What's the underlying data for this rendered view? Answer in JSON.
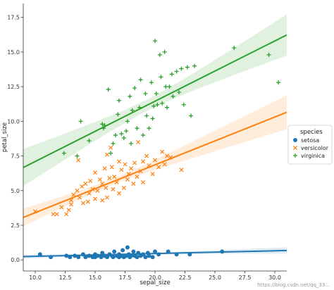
{
  "chart_data": {
    "type": "scatter",
    "xlabel": "sepal_size",
    "ylabel": "petal_size",
    "xlim": [
      9.0,
      31.0
    ],
    "ylim": [
      -0.8,
      18.5
    ],
    "xticks": [
      "10.0",
      "12.5",
      "15.0",
      "17.5",
      "20.0",
      "22.5",
      "25.0",
      "27.5",
      "30.0"
    ],
    "yticks": [
      "0.0",
      "2.5",
      "5.0",
      "7.5",
      "10.0",
      "12.5",
      "15.0",
      "17.5"
    ],
    "grid": false,
    "legend": {
      "title": "species",
      "placement": "right"
    },
    "series": [
      {
        "name": "setosa",
        "color": "#1f77b4",
        "marker": "circle",
        "fit": {
          "slope": 0.02,
          "intercept": 0.06
        },
        "points": [
          [
            10.4,
            0.4
          ],
          [
            11.3,
            0.2
          ],
          [
            12.6,
            0.3
          ],
          [
            12.9,
            0.2
          ],
          [
            13.3,
            0.3
          ],
          [
            13.6,
            0.2
          ],
          [
            14.0,
            0.4
          ],
          [
            14.2,
            0.2
          ],
          [
            14.5,
            0.3
          ],
          [
            14.8,
            0.2
          ],
          [
            15.0,
            0.2
          ],
          [
            15.0,
            0.4
          ],
          [
            15.2,
            0.3
          ],
          [
            15.5,
            0.2
          ],
          [
            15.6,
            0.5
          ],
          [
            15.8,
            0.3
          ],
          [
            16.0,
            0.2
          ],
          [
            16.2,
            0.4
          ],
          [
            16.4,
            0.3
          ],
          [
            16.5,
            0.2
          ],
          [
            16.6,
            0.6
          ],
          [
            16.8,
            0.3
          ],
          [
            17.0,
            0.2
          ],
          [
            17.0,
            0.4
          ],
          [
            17.2,
            0.3
          ],
          [
            17.3,
            0.7
          ],
          [
            17.4,
            0.2
          ],
          [
            17.6,
            0.3
          ],
          [
            17.7,
            0.9
          ],
          [
            17.8,
            0.4
          ],
          [
            17.9,
            0.2
          ],
          [
            18.0,
            0.3
          ],
          [
            18.2,
            0.6
          ],
          [
            18.3,
            0.3
          ],
          [
            18.5,
            0.2
          ],
          [
            18.6,
            0.5
          ],
          [
            18.8,
            0.3
          ],
          [
            19.0,
            0.4
          ],
          [
            19.2,
            0.2
          ],
          [
            19.4,
            0.5
          ],
          [
            19.5,
            0.3
          ],
          [
            19.8,
            0.2
          ],
          [
            20.0,
            0.6
          ],
          [
            20.3,
            0.4
          ],
          [
            21.1,
            0.6
          ],
          [
            21.8,
            0.4
          ],
          [
            22.9,
            0.4
          ],
          [
            25.6,
            0.6
          ]
        ]
      },
      {
        "name": "versicolor",
        "color": "#ff7f0e",
        "marker": "x",
        "fit": {
          "slope": 0.345,
          "intercept": -0.04
        },
        "points": [
          [
            10.0,
            3.5
          ],
          [
            11.5,
            3.3
          ],
          [
            11.8,
            3.3
          ],
          [
            12.2,
            3.8
          ],
          [
            12.6,
            3.3
          ],
          [
            12.8,
            3.6
          ],
          [
            13.0,
            4.0
          ],
          [
            13.0,
            4.3
          ],
          [
            13.2,
            4.7
          ],
          [
            13.5,
            5.0
          ],
          [
            13.6,
            7.2
          ],
          [
            13.7,
            4.5
          ],
          [
            13.9,
            5.3
          ],
          [
            14.0,
            4.1
          ],
          [
            14.2,
            5.5
          ],
          [
            14.4,
            4.2
          ],
          [
            14.5,
            4.8
          ],
          [
            14.6,
            5.7
          ],
          [
            14.8,
            5.1
          ],
          [
            15.0,
            4.4
          ],
          [
            15.0,
            6.3
          ],
          [
            15.2,
            5.0
          ],
          [
            15.4,
            5.8
          ],
          [
            15.6,
            4.3
          ],
          [
            15.6,
            5.5
          ],
          [
            15.8,
            6.6
          ],
          [
            15.9,
            5.2
          ],
          [
            16.0,
            4.5
          ],
          [
            16.0,
            7.6
          ],
          [
            16.2,
            5.9
          ],
          [
            16.3,
            8.1
          ],
          [
            16.4,
            6.7
          ],
          [
            16.5,
            5.1
          ],
          [
            16.6,
            6.0
          ],
          [
            16.8,
            5.6
          ],
          [
            17.0,
            7.1
          ],
          [
            17.0,
            4.8
          ],
          [
            17.2,
            6.5
          ],
          [
            17.4,
            5.2
          ],
          [
            17.5,
            6.9
          ],
          [
            17.7,
            5.8
          ],
          [
            17.8,
            6.2
          ],
          [
            18.0,
            6.6
          ],
          [
            18.2,
            5.5
          ],
          [
            18.3,
            7.0
          ],
          [
            18.5,
            6.0
          ],
          [
            18.6,
            8.5
          ],
          [
            18.8,
            6.4
          ],
          [
            19.0,
            5.6
          ],
          [
            19.0,
            7.1
          ],
          [
            19.3,
            7.5
          ],
          [
            19.5,
            6.8
          ],
          [
            19.8,
            6.2
          ],
          [
            20.0,
            7.2
          ],
          [
            20.3,
            6.7
          ],
          [
            20.6,
            7.8
          ],
          [
            20.8,
            6.9
          ],
          [
            21.0,
            7.5
          ],
          [
            21.3,
            7.4
          ],
          [
            22.2,
            6.5
          ]
        ]
      },
      {
        "name": "virginica",
        "color": "#2ca02c",
        "marker": "plus",
        "fit": {
          "slope": 0.435,
          "intercept": 2.75
        },
        "points": [
          [
            12.4,
            7.7
          ],
          [
            13.5,
            7.5
          ],
          [
            13.8,
            10.0
          ],
          [
            14.5,
            8.6
          ],
          [
            15.6,
            9.8
          ],
          [
            15.7,
            9.5
          ],
          [
            15.8,
            9.7
          ],
          [
            16.1,
            12.3
          ],
          [
            16.3,
            7.7
          ],
          [
            16.5,
            8.4
          ],
          [
            16.7,
            9.0
          ],
          [
            16.9,
            10.5
          ],
          [
            17.0,
            11.5
          ],
          [
            17.2,
            9.1
          ],
          [
            17.4,
            8.8
          ],
          [
            17.6,
            9.3
          ],
          [
            17.7,
            10.0
          ],
          [
            17.9,
            11.8
          ],
          [
            18.0,
            8.4
          ],
          [
            18.1,
            10.8
          ],
          [
            18.3,
            12.4
          ],
          [
            18.5,
            9.5
          ],
          [
            18.7,
            11.0
          ],
          [
            18.8,
            13.0
          ],
          [
            19.0,
            9.0
          ],
          [
            19.2,
            12.0
          ],
          [
            19.3,
            10.4
          ],
          [
            19.5,
            9.5
          ],
          [
            19.7,
            12.8
          ],
          [
            19.8,
            10.2
          ],
          [
            19.9,
            11.1
          ],
          [
            20.0,
            15.8
          ],
          [
            20.1,
            12.0
          ],
          [
            20.2,
            11.2
          ],
          [
            20.4,
            14.8
          ],
          [
            20.5,
            13.2
          ],
          [
            20.6,
            11.3
          ],
          [
            20.8,
            15.0
          ],
          [
            20.9,
            12.5
          ],
          [
            21.0,
            11.0
          ],
          [
            21.2,
            12.5
          ],
          [
            21.4,
            13.4
          ],
          [
            21.5,
            11.8
          ],
          [
            21.8,
            13.6
          ],
          [
            22.0,
            12.1
          ],
          [
            22.2,
            13.8
          ],
          [
            22.4,
            11.2
          ],
          [
            22.7,
            13.9
          ],
          [
            23.0,
            10.4
          ],
          [
            23.3,
            14.0
          ],
          [
            26.6,
            15.3
          ],
          [
            29.5,
            14.8
          ],
          [
            30.3,
            12.8
          ]
        ]
      }
    ]
  },
  "watermark": "https://blog.csdn.net/qq_33... "
}
